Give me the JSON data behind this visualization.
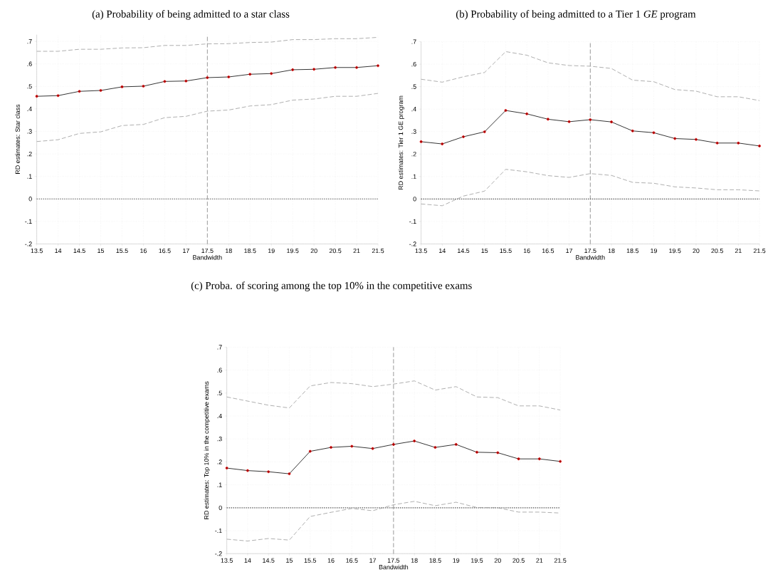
{
  "chart_data": [
    {
      "type": "line",
      "title": "(a) Probability of being admitted to a star class",
      "xlabel": "Bandwidth",
      "ylabel": "RD estimates: Star class",
      "x": [
        13.5,
        14,
        14.5,
        15,
        15.5,
        16,
        16.5,
        17,
        17.5,
        18,
        18.5,
        19,
        19.5,
        20,
        20.5,
        21,
        21.5
      ],
      "xlim": [
        13.5,
        21.5
      ],
      "xticks": [
        13.5,
        14,
        14.5,
        15,
        15.5,
        16,
        16.5,
        17,
        17.5,
        18,
        18.5,
        19,
        19.5,
        20,
        20.5,
        21,
        21.5
      ],
      "ylim": [
        -0.2,
        0.73
      ],
      "yticks": [
        {
          "value": -0.2,
          "label": "-.2"
        },
        {
          "value": -0.1,
          "label": "-.1"
        },
        0,
        {
          "value": 0.1,
          "label": ".1"
        },
        {
          "value": 0.2,
          "label": ".2"
        },
        {
          "value": 0.3,
          "label": ".3"
        },
        {
          "value": 0.4,
          "label": ".4"
        },
        {
          "value": 0.5,
          "label": ".5"
        },
        {
          "value": 0.6,
          "label": ".6"
        },
        {
          "value": 0.7,
          "label": ".7"
        }
      ],
      "grid": true,
      "ref_lines": [
        {
          "axis": "y",
          "value": 0,
          "line_style": "dotted",
          "color": "#555555"
        },
        {
          "axis": "x",
          "value": 17.5,
          "line_style": "dashed",
          "color": "#555555"
        }
      ],
      "series": [
        {
          "color": "#999999",
          "line_style": "dashed",
          "marker": "none",
          "values": [
            0.656,
            0.656,
            0.665,
            0.665,
            0.671,
            0.672,
            0.682,
            0.682,
            0.689,
            0.69,
            0.695,
            0.697,
            0.708,
            0.708,
            0.712,
            0.712,
            0.718
          ]
        },
        {
          "color": "#000000",
          "line_style": "solid",
          "marker": "circle",
          "values": [
            0.456,
            0.459,
            0.478,
            0.482,
            0.498,
            0.501,
            0.522,
            0.524,
            0.539,
            0.542,
            0.554,
            0.557,
            0.574,
            0.576,
            0.584,
            0.584,
            0.592
          ]
        },
        {
          "color": "#999999",
          "line_style": "dashed",
          "marker": "none",
          "values": [
            0.255,
            0.263,
            0.291,
            0.298,
            0.326,
            0.331,
            0.361,
            0.367,
            0.39,
            0.395,
            0.413,
            0.419,
            0.439,
            0.444,
            0.456,
            0.456,
            0.469
          ]
        }
      ]
    },
    {
      "type": "line",
      "title": "(b) Probability of being admitted to a Tier 1 *GE* program",
      "xlabel": "Bandwidth",
      "ylabel": "RD estimates: Tier 1 GE program",
      "x": [
        13.5,
        14,
        14.5,
        15,
        15.5,
        16,
        16.5,
        17,
        17.5,
        18,
        18.5,
        19,
        19.5,
        20,
        20.5,
        21,
        21.5
      ],
      "xlim": [
        13.5,
        21.5
      ],
      "xticks": [
        13.5,
        14,
        14.5,
        15,
        15.5,
        16,
        16.5,
        17,
        17.5,
        18,
        18.5,
        19,
        19.5,
        20,
        20.5,
        21,
        21.5
      ],
      "ylim": [
        -0.2,
        0.7
      ],
      "yticks": [
        {
          "value": -0.2,
          "label": "-.2"
        },
        {
          "value": -0.1,
          "label": "-.1"
        },
        0,
        {
          "value": 0.1,
          "label": ".1"
        },
        {
          "value": 0.2,
          "label": ".2"
        },
        {
          "value": 0.3,
          "label": ".3"
        },
        {
          "value": 0.4,
          "label": ".4"
        },
        {
          "value": 0.5,
          "label": ".5"
        },
        {
          "value": 0.6,
          "label": ".6"
        },
        {
          "value": 0.7,
          "label": ".7"
        }
      ],
      "grid": true,
      "ref_lines": [
        {
          "axis": "y",
          "value": 0,
          "line_style": "dotted",
          "color": "#555555"
        },
        {
          "axis": "x",
          "value": 17.5,
          "line_style": "dashed",
          "color": "#555555"
        }
      ],
      "series": [
        {
          "color": "#999999",
          "line_style": "dashed",
          "marker": "none",
          "values": [
            0.533,
            0.52,
            0.544,
            0.563,
            0.656,
            0.64,
            0.606,
            0.594,
            0.591,
            0.581,
            0.529,
            0.522,
            0.487,
            0.48,
            0.455,
            0.455,
            0.438
          ]
        },
        {
          "color": "#000000",
          "line_style": "solid",
          "marker": "circle",
          "values": [
            0.255,
            0.245,
            0.277,
            0.299,
            0.394,
            0.379,
            0.355,
            0.344,
            0.353,
            0.343,
            0.303,
            0.295,
            0.269,
            0.265,
            0.249,
            0.249,
            0.236
          ]
        },
        {
          "color": "#999999",
          "line_style": "dashed",
          "marker": "none",
          "values": [
            -0.022,
            -0.03,
            0.013,
            0.035,
            0.132,
            0.121,
            0.104,
            0.096,
            0.113,
            0.105,
            0.074,
            0.07,
            0.054,
            0.049,
            0.041,
            0.041,
            0.036
          ]
        }
      ]
    },
    {
      "type": "line",
      "title": "(c) Proba.  of scoring among the top 10% in the competitive exams",
      "xlabel": "Bandwidth",
      "ylabel": "RD estimates: Top 10% in the competitive exams",
      "x": [
        13.5,
        14,
        14.5,
        15,
        15.5,
        16,
        16.5,
        17,
        17.5,
        18,
        18.5,
        19,
        19.5,
        20,
        20.5,
        21,
        21.5
      ],
      "xlim": [
        13.5,
        21.5
      ],
      "xticks": [
        13.5,
        14,
        14.5,
        15,
        15.5,
        16,
        16.5,
        17,
        17.5,
        18,
        18.5,
        19,
        19.5,
        20,
        20.5,
        21,
        21.5
      ],
      "ylim": [
        -0.2,
        0.7
      ],
      "yticks": [
        {
          "value": -0.2,
          "label": "-.2"
        },
        {
          "value": -0.1,
          "label": "-.1"
        },
        0,
        {
          "value": 0.1,
          "label": ".1"
        },
        {
          "value": 0.2,
          "label": ".2"
        },
        {
          "value": 0.3,
          "label": ".3"
        },
        {
          "value": 0.4,
          "label": ".4"
        },
        {
          "value": 0.5,
          "label": ".5"
        },
        {
          "value": 0.6,
          "label": ".6"
        },
        {
          "value": 0.7,
          "label": ".7"
        }
      ],
      "grid": true,
      "ref_lines": [
        {
          "axis": "y",
          "value": 0,
          "line_style": "dotted",
          "color": "#555555"
        },
        {
          "axis": "x",
          "value": 17.5,
          "line_style": "dashed",
          "color": "#555555"
        }
      ],
      "series": [
        {
          "color": "#999999",
          "line_style": "dashed",
          "marker": "none",
          "values": [
            0.483,
            0.465,
            0.447,
            0.435,
            0.531,
            0.546,
            0.541,
            0.528,
            0.539,
            0.553,
            0.513,
            0.528,
            0.483,
            0.48,
            0.444,
            0.444,
            0.426
          ]
        },
        {
          "color": "#000000",
          "line_style": "solid",
          "marker": "circle",
          "values": [
            0.173,
            0.162,
            0.157,
            0.148,
            0.246,
            0.263,
            0.268,
            0.258,
            0.276,
            0.291,
            0.263,
            0.276,
            0.242,
            0.24,
            0.213,
            0.213,
            0.202
          ]
        },
        {
          "color": "#999999",
          "line_style": "dashed",
          "marker": "none",
          "values": [
            -0.137,
            -0.145,
            -0.134,
            -0.141,
            -0.038,
            -0.02,
            -0.003,
            -0.013,
            0.013,
            0.028,
            0.009,
            0.024,
            0.001,
            0.0,
            -0.019,
            -0.019,
            -0.023
          ]
        }
      ]
    }
  ]
}
